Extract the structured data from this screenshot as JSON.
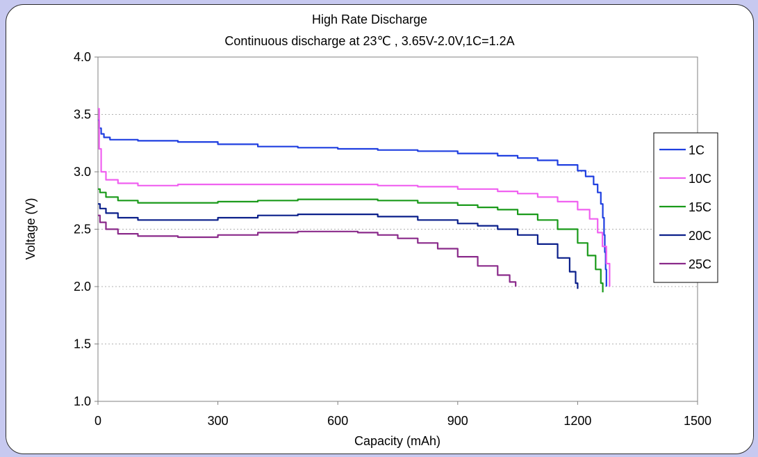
{
  "chart_data": {
    "type": "line",
    "title": "High Rate Discharge",
    "subtitle": "Continuous  discharge at 23℃ ,  3.65V-2.0V,1C=1.2A",
    "xlabel": "Capacity (mAh)",
    "ylabel": "Voltage (V)",
    "xlim": [
      0,
      1500
    ],
    "ylim": [
      1.0,
      4.0
    ],
    "xticks": [
      "0",
      "300",
      "600",
      "900",
      "1200",
      "1500"
    ],
    "yticks": [
      "1.0",
      "1.5",
      "2.0",
      "2.5",
      "3.0",
      "3.5",
      "4.0"
    ],
    "xtick_values": [
      0,
      300,
      600,
      900,
      1200,
      1500
    ],
    "ytick_values": [
      1.0,
      1.5,
      2.0,
      2.5,
      3.0,
      3.5,
      4.0
    ],
    "grid": "horizontal dotted",
    "legend_position": "right",
    "series": [
      {
        "name": "1C",
        "color": "#1f3fe0",
        "points": [
          [
            0,
            3.45
          ],
          [
            3,
            3.38
          ],
          [
            8,
            3.33
          ],
          [
            15,
            3.3
          ],
          [
            30,
            3.28
          ],
          [
            100,
            3.27
          ],
          [
            200,
            3.26
          ],
          [
            300,
            3.24
          ],
          [
            400,
            3.22
          ],
          [
            500,
            3.21
          ],
          [
            600,
            3.2
          ],
          [
            700,
            3.19
          ],
          [
            800,
            3.18
          ],
          [
            900,
            3.16
          ],
          [
            1000,
            3.14
          ],
          [
            1050,
            3.12
          ],
          [
            1100,
            3.1
          ],
          [
            1150,
            3.06
          ],
          [
            1200,
            3.01
          ],
          [
            1220,
            2.96
          ],
          [
            1240,
            2.89
          ],
          [
            1250,
            2.82
          ],
          [
            1258,
            2.72
          ],
          [
            1263,
            2.6
          ],
          [
            1266,
            2.45
          ],
          [
            1268,
            2.3
          ],
          [
            1270,
            2.15
          ],
          [
            1272,
            2.0
          ]
        ]
      },
      {
        "name": "10C",
        "color": "#f060f0",
        "points": [
          [
            0,
            3.55
          ],
          [
            3,
            3.2
          ],
          [
            8,
            3.0
          ],
          [
            20,
            2.93
          ],
          [
            50,
            2.9
          ],
          [
            100,
            2.88
          ],
          [
            200,
            2.89
          ],
          [
            300,
            2.89
          ],
          [
            400,
            2.89
          ],
          [
            500,
            2.89
          ],
          [
            600,
            2.89
          ],
          [
            700,
            2.88
          ],
          [
            800,
            2.87
          ],
          [
            900,
            2.85
          ],
          [
            1000,
            2.83
          ],
          [
            1050,
            2.81
          ],
          [
            1100,
            2.78
          ],
          [
            1150,
            2.74
          ],
          [
            1200,
            2.67
          ],
          [
            1230,
            2.59
          ],
          [
            1250,
            2.47
          ],
          [
            1262,
            2.35
          ],
          [
            1272,
            2.2
          ],
          [
            1280,
            2.0
          ]
        ]
      },
      {
        "name": "15C",
        "color": "#1a9a1a",
        "points": [
          [
            0,
            2.85
          ],
          [
            5,
            2.82
          ],
          [
            20,
            2.78
          ],
          [
            50,
            2.75
          ],
          [
            100,
            2.73
          ],
          [
            200,
            2.73
          ],
          [
            300,
            2.74
          ],
          [
            400,
            2.75
          ],
          [
            500,
            2.76
          ],
          [
            600,
            2.76
          ],
          [
            700,
            2.75
          ],
          [
            800,
            2.73
          ],
          [
            900,
            2.71
          ],
          [
            950,
            2.69
          ],
          [
            1000,
            2.67
          ],
          [
            1050,
            2.63
          ],
          [
            1100,
            2.58
          ],
          [
            1150,
            2.5
          ],
          [
            1200,
            2.38
          ],
          [
            1225,
            2.27
          ],
          [
            1245,
            2.15
          ],
          [
            1258,
            2.03
          ],
          [
            1263,
            1.95
          ]
        ]
      },
      {
        "name": "20C",
        "color": "#0a1f8a",
        "points": [
          [
            0,
            2.72
          ],
          [
            5,
            2.68
          ],
          [
            20,
            2.64
          ],
          [
            50,
            2.6
          ],
          [
            100,
            2.58
          ],
          [
            200,
            2.58
          ],
          [
            300,
            2.6
          ],
          [
            400,
            2.62
          ],
          [
            500,
            2.63
          ],
          [
            600,
            2.63
          ],
          [
            700,
            2.61
          ],
          [
            800,
            2.58
          ],
          [
            900,
            2.55
          ],
          [
            950,
            2.53
          ],
          [
            1000,
            2.5
          ],
          [
            1050,
            2.45
          ],
          [
            1100,
            2.37
          ],
          [
            1150,
            2.25
          ],
          [
            1180,
            2.13
          ],
          [
            1195,
            2.03
          ],
          [
            1200,
            1.98
          ]
        ]
      },
      {
        "name": "25C",
        "color": "#8a2a8a",
        "points": [
          [
            0,
            2.62
          ],
          [
            5,
            2.56
          ],
          [
            20,
            2.5
          ],
          [
            50,
            2.46
          ],
          [
            100,
            2.44
          ],
          [
            200,
            2.43
          ],
          [
            300,
            2.45
          ],
          [
            400,
            2.47
          ],
          [
            500,
            2.48
          ],
          [
            600,
            2.48
          ],
          [
            650,
            2.47
          ],
          [
            700,
            2.45
          ],
          [
            750,
            2.42
          ],
          [
            800,
            2.38
          ],
          [
            850,
            2.33
          ],
          [
            900,
            2.26
          ],
          [
            950,
            2.18
          ],
          [
            1000,
            2.1
          ],
          [
            1030,
            2.04
          ],
          [
            1045,
            2.0
          ]
        ]
      }
    ]
  }
}
